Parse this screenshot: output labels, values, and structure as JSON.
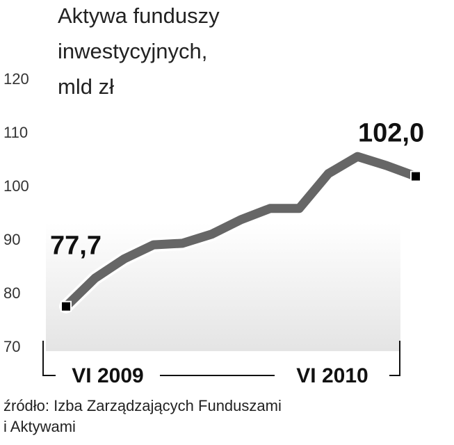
{
  "chart_data": {
    "type": "line",
    "title": [
      "Aktywa funduszy",
      "inwestycyjnych,",
      "mld zł"
    ],
    "categories": [
      "VI 2009",
      null,
      null,
      null,
      null,
      null,
      null,
      null,
      null,
      null,
      null,
      null,
      "VI 2010"
    ],
    "values": [
      77.7,
      83.0,
      86.6,
      89.2,
      89.5,
      91.2,
      93.9,
      96.0,
      96.0,
      102.5,
      105.7,
      104.0,
      102.0
    ],
    "value_labels": [
      "77,7",
      null,
      null,
      null,
      null,
      null,
      null,
      null,
      null,
      null,
      null,
      null,
      "102,0"
    ],
    "color": "#666666",
    "ylim": [
      70,
      120
    ],
    "yticks": [
      70,
      80,
      90,
      100,
      110,
      120
    ],
    "source": [
      "źródło: Izba Zarządzających Funduszami",
      "i Aktywami"
    ]
  }
}
